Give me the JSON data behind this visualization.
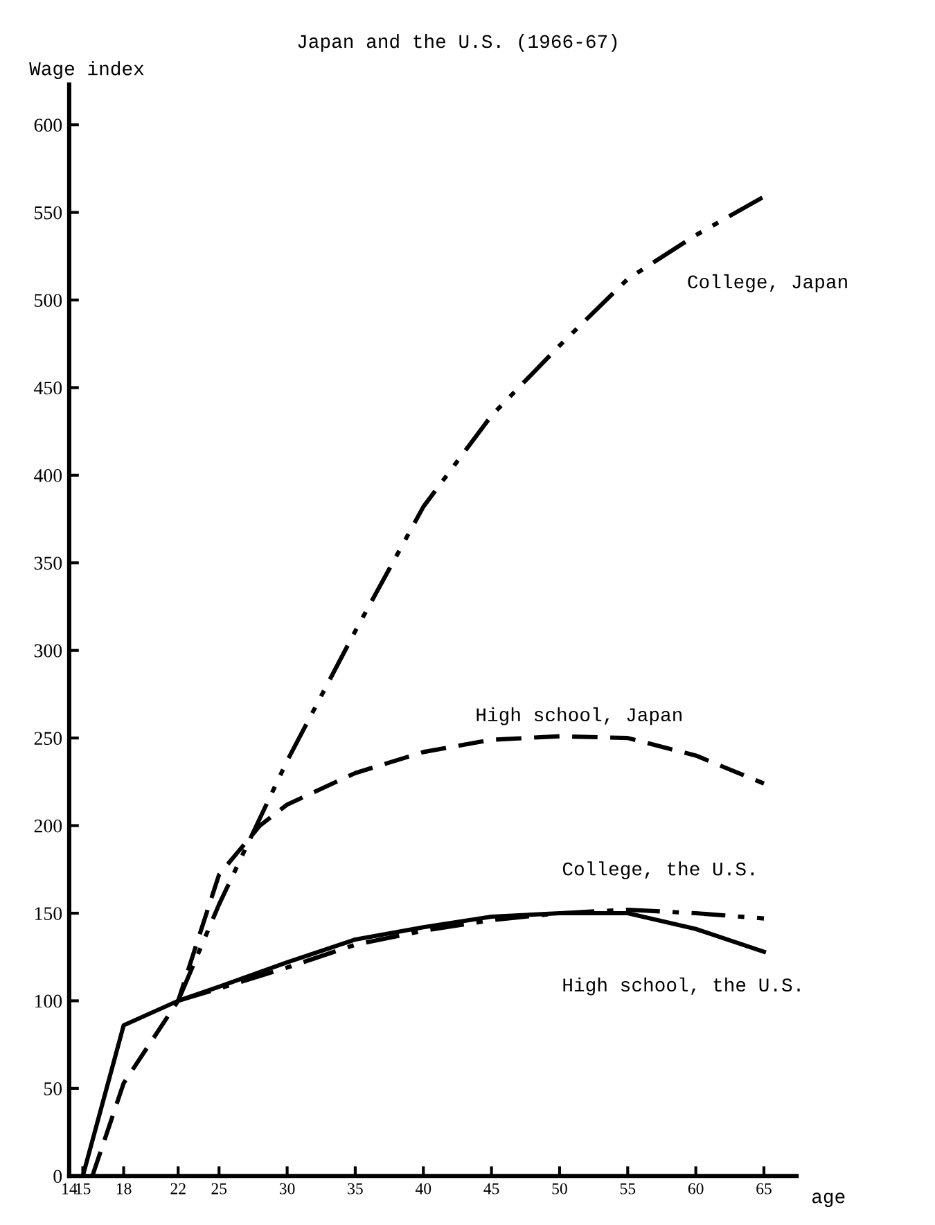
{
  "chart_data": {
    "type": "line",
    "title": "Japan and the U.S. (1966-67)",
    "ylabel": "Wage index",
    "xlabel": "age",
    "xlim": [
      14,
      67.4
    ],
    "xticks": [
      14,
      15,
      18,
      22,
      25,
      30,
      35,
      40,
      45,
      50,
      55,
      60,
      65
    ],
    "ylim": [
      0,
      623
    ],
    "yticks": [
      0,
      50,
      100,
      150,
      200,
      250,
      300,
      350,
      400,
      450,
      500,
      550,
      600
    ],
    "grid": false,
    "legend": false,
    "series": [
      {
        "name": "College, Japan",
        "color": "#000000",
        "line_style": "dashdotdot",
        "x": [
          22,
          25,
          30,
          35,
          40,
          45,
          50,
          55,
          60,
          65
        ],
        "values": [
          100,
          155,
          237,
          311,
          382,
          434,
          474,
          512,
          537,
          559
        ]
      },
      {
        "name": "High school, Japan",
        "color": "#000000",
        "line_style": "dashed",
        "x": [
          15.7,
          18,
          22,
          25,
          28,
          30,
          35,
          40,
          45,
          50,
          55,
          60,
          65
        ],
        "values": [
          0,
          53,
          100,
          172,
          200,
          212,
          230,
          242,
          249,
          251,
          250,
          240,
          224
        ]
      },
      {
        "name": "College, the U.S.",
        "color": "#000000",
        "line_style": "dashdot",
        "x": [
          22,
          25,
          30,
          35,
          40,
          45,
          50,
          55,
          60,
          65
        ],
        "values": [
          100,
          107,
          119,
          132,
          140,
          146,
          150,
          152,
          150,
          147
        ]
      },
      {
        "name": "High school, the U.S.",
        "color": "#000000",
        "line_style": "solid",
        "x": [
          15,
          18,
          22,
          25,
          30,
          35,
          40,
          45,
          50,
          55,
          60,
          65
        ],
        "values": [
          0,
          86,
          100,
          108,
          122,
          135,
          142,
          148,
          150,
          150,
          141,
          128
        ]
      }
    ]
  }
}
